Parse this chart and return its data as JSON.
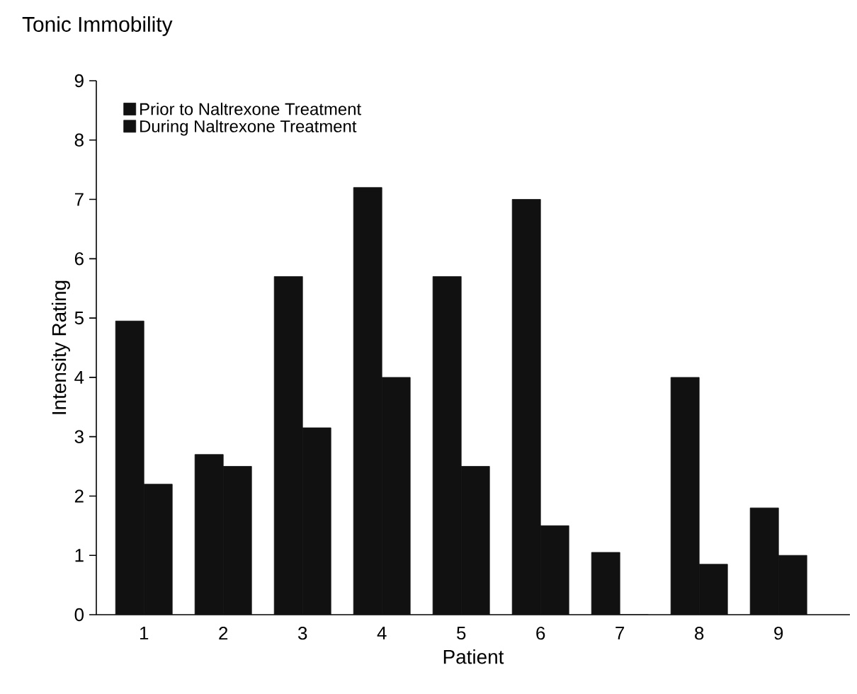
{
  "chart_data": {
    "type": "bar",
    "title": "Tonic Immobility",
    "xlabel": "Patient",
    "ylabel": "Intensity Rating",
    "categories": [
      "1",
      "2",
      "3",
      "4",
      "5",
      "6",
      "7",
      "8",
      "9"
    ],
    "series": [
      {
        "name": "Prior to Naltrexone Treatment",
        "color": "#111111",
        "values": [
          4.95,
          2.7,
          5.7,
          7.2,
          5.7,
          7.0,
          1.05,
          4.0,
          1.8
        ]
      },
      {
        "name": "During Naltrexone Treatment",
        "color": "#111111",
        "values": [
          2.2,
          2.5,
          3.15,
          4.0,
          2.5,
          1.5,
          0,
          0.85,
          1.0
        ]
      }
    ],
    "ylim": [
      0,
      9
    ],
    "yticks": [
      0,
      1,
      2,
      3,
      4,
      5,
      6,
      7,
      8,
      9
    ],
    "grid": false,
    "legend": "top left"
  }
}
